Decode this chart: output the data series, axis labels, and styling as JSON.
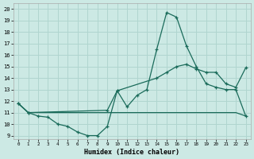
{
  "xlabel": "Humidex (Indice chaleur)",
  "xlim": [
    -0.5,
    23.5
  ],
  "ylim": [
    8.7,
    20.5
  ],
  "xticks": [
    0,
    1,
    2,
    3,
    4,
    5,
    6,
    7,
    8,
    9,
    10,
    11,
    12,
    13,
    14,
    15,
    16,
    17,
    18,
    19,
    20,
    21,
    22,
    23
  ],
  "yticks": [
    9,
    10,
    11,
    12,
    13,
    14,
    15,
    16,
    17,
    18,
    19,
    20
  ],
  "background_color": "#cce9e4",
  "grid_color": "#b0d5cf",
  "line_color": "#1a6b5a",
  "line1_x": [
    0,
    1,
    2,
    3,
    4,
    5,
    6,
    7,
    8,
    9,
    10,
    11,
    12,
    13,
    14,
    15,
    16,
    17,
    18,
    19,
    20,
    21,
    22,
    23
  ],
  "line1_y": [
    11.8,
    11.0,
    10.7,
    10.6,
    10.0,
    9.8,
    9.3,
    9.0,
    9.0,
    9.8,
    12.9,
    11.5,
    12.5,
    13.0,
    16.5,
    19.7,
    19.3,
    16.8,
    15.0,
    13.5,
    13.2,
    13.0,
    13.0,
    10.7
  ],
  "line2_x": [
    0,
    1,
    2,
    3,
    4,
    5,
    6,
    7,
    8,
    9,
    10,
    11,
    12,
    13,
    14,
    15,
    16,
    17,
    18,
    19,
    20,
    21,
    22,
    23
  ],
  "line2_y": [
    11.8,
    11.0,
    11.0,
    11.0,
    11.0,
    11.0,
    11.0,
    11.0,
    11.0,
    11.0,
    11.0,
    11.0,
    11.0,
    11.0,
    11.0,
    11.0,
    11.0,
    11.0,
    11.0,
    11.0,
    11.0,
    11.0,
    11.0,
    10.7
  ],
  "line3_x": [
    0,
    1,
    9,
    10,
    14,
    15,
    16,
    17,
    18,
    19,
    20,
    21,
    22,
    23
  ],
  "line3_y": [
    11.8,
    11.0,
    11.2,
    12.9,
    14.0,
    14.5,
    15.0,
    15.2,
    14.8,
    14.5,
    14.5,
    13.5,
    13.2,
    14.9
  ]
}
